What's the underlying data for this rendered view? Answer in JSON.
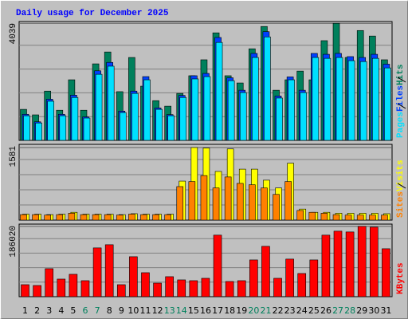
{
  "chart_data": [
    {
      "type": "bar",
      "title": "Daily usage for December 2025",
      "ylim": [
        0,
        4100
      ],
      "yticks": [
        4039
      ],
      "series": [
        {
          "name": "Hits",
          "color": "#00805c",
          "values": [
            1070,
            880,
            1700,
            1040,
            2090,
            1040,
            2640,
            3050,
            1680,
            2860,
            1870,
            1370,
            1180,
            1620,
            2230,
            2780,
            3710,
            2230,
            1980,
            3160,
            3930,
            1730,
            2090,
            2390,
            2090,
            3440,
            4039,
            2860,
            3790,
            3600,
            2780
          ]
        },
        {
          "name": "Files",
          "color": "#0040ff",
          "values": [
            900,
            640,
            1420,
            900,
            1560,
            810,
            2400,
            2690,
            1010,
            1700,
            2200,
            1120,
            890,
            1550,
            2230,
            2310,
            3550,
            2160,
            1730,
            3000,
            3750,
            1530,
            2190,
            1730,
            3000,
            2970,
            3000,
            2890,
            2860,
            2970,
            2630
          ]
        },
        {
          "name": "Pages",
          "color": "#00e0ff",
          "values": [
            850,
            600,
            1350,
            850,
            1480,
            770,
            2280,
            2560,
            960,
            1620,
            2090,
            1070,
            850,
            1480,
            2120,
            2200,
            3380,
            2060,
            1650,
            2860,
            3570,
            1460,
            2090,
            1650,
            2860,
            2830,
            2860,
            2750,
            2720,
            2830,
            2500
          ]
        }
      ]
    },
    {
      "type": "bar",
      "ylim": [
        0,
        1650
      ],
      "yticks": [
        1581
      ],
      "series": [
        {
          "name": "Visits",
          "color": "#ffff00",
          "values": [
            130,
            130,
            120,
            130,
            170,
            130,
            130,
            130,
            120,
            140,
            130,
            130,
            130,
            850,
            1581,
            1570,
            1060,
            1550,
            1110,
            1110,
            870,
            700,
            1240,
            240,
            170,
            170,
            150,
            150,
            150,
            150,
            140
          ]
        },
        {
          "name": "Sites",
          "color": "#ff8000",
          "values": [
            120,
            120,
            110,
            120,
            150,
            120,
            120,
            120,
            110,
            130,
            120,
            120,
            120,
            730,
            840,
            970,
            700,
            940,
            800,
            770,
            700,
            560,
            840,
            210,
            170,
            150,
            120,
            110,
            110,
            110,
            110
          ]
        }
      ]
    },
    {
      "type": "bar",
      "ylim": [
        0,
        192000
      ],
      "yticks": [
        186020
      ],
      "categories": [
        "1",
        "2",
        "3",
        "4",
        "5",
        "6",
        "7",
        "8",
        "9",
        "10",
        "11",
        "12",
        "13",
        "14",
        "15",
        "16",
        "17",
        "18",
        "19",
        "20",
        "21",
        "22",
        "23",
        "24",
        "25",
        "26",
        "27",
        "28",
        "29",
        "30",
        "31"
      ],
      "category_colors": [
        "#000000",
        "#000000",
        "#000000",
        "#000000",
        "#000000",
        "#00805c",
        "#00805c",
        "#000000",
        "#000000",
        "#000000",
        "#000000",
        "#000000",
        "#00805c",
        "#00805c",
        "#000000",
        "#000000",
        "#000000",
        "#000000",
        "#000000",
        "#00805c",
        "#00805c",
        "#000000",
        "#000000",
        "#000000",
        "#000000",
        "#000000",
        "#00805c",
        "#00805c",
        "#000000",
        "#000000",
        "#000000"
      ],
      "series": [
        {
          "name": "KBytes",
          "color": "#ff0000",
          "values": [
            31700,
            29600,
            74000,
            46500,
            59200,
            42300,
            129000,
            137400,
            31700,
            105700,
            63400,
            35900,
            52900,
            44400,
            42300,
            48600,
            162800,
            40200,
            42300,
            97200,
            133200,
            48600,
            99400,
            61300,
            97200,
            162800,
            173300,
            171200,
            186020,
            183900,
            126800
          ]
        }
      ]
    }
  ]
}
